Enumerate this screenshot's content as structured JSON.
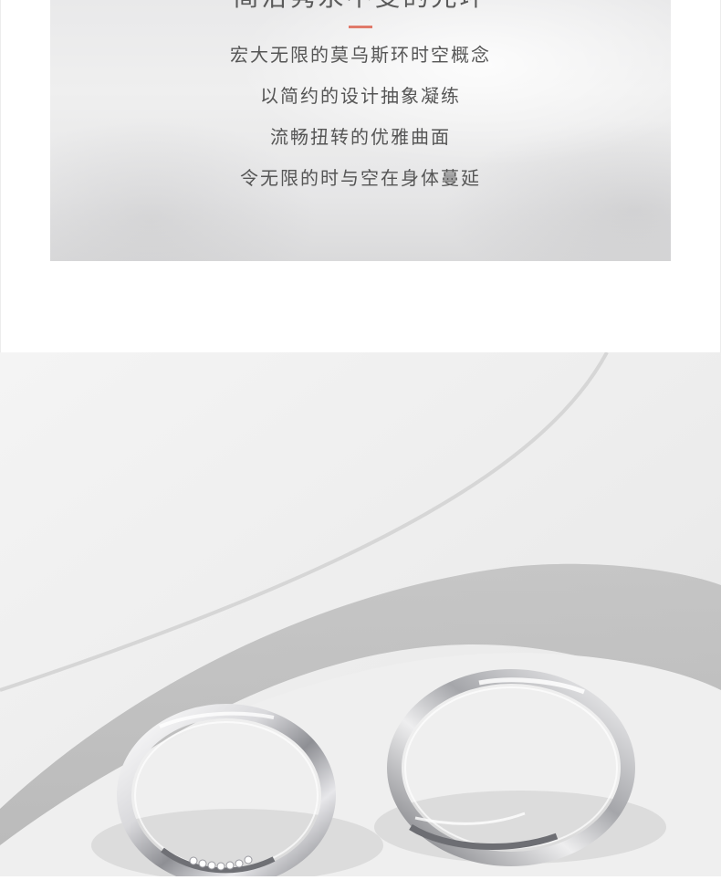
{
  "intro": {
    "title": "简洁隽永不变的光环",
    "lines": [
      "宏大无限的莫乌斯环时空概念",
      "以简约的设计抽象凝练",
      "流畅扭转的优雅曲面",
      "令无限的时与空在身体蔓延"
    ],
    "accent_color": "#e07a6a"
  },
  "photo": {
    "subject": "ring-pair-icon"
  }
}
